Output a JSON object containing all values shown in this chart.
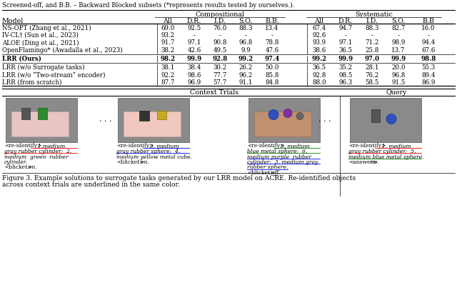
{
  "caption_top": "Screened-off, and B.B. – Backward Blocked subsets (*represents results tested by ourselves.).",
  "col_headers_2": [
    "Model",
    "All",
    "D.R.",
    "I.D.",
    "S.O.",
    "B.B.",
    "All",
    "D.R.",
    "I.D.",
    "S.O.",
    "B.B"
  ],
  "rows": [
    [
      "NS-OPT (Zhang et al., 2021)",
      "69.0",
      "92.5",
      "76.0",
      "88.3",
      "13.4",
      "67.4",
      "94.7",
      "88.3",
      "82.7",
      "16.0"
    ],
    [
      "IV-CL† (Sun et al., 2023)",
      "93.2",
      "-",
      "-",
      "-",
      "-",
      "92.6",
      "-",
      "-",
      "-",
      "-"
    ],
    [
      "ALOE (Ding et al., 2021)",
      "91.7",
      "97.1",
      "90.8",
      "96.8",
      "78.8",
      "93.9",
      "97.1",
      "71.2",
      "98.9",
      "94.4"
    ],
    [
      "OpenFlamingo* (Awadalla et al., 2023)",
      "38.2",
      "42.6",
      "49.5",
      "9.9",
      "47.6",
      "38.6",
      "36.5",
      "25.8",
      "13.7",
      "67.6"
    ]
  ],
  "lrr_row": [
    "LRR (Ours)",
    "98.2",
    "99.9",
    "92.8",
    "99.2",
    "97.4",
    "99.2",
    "99.9",
    "97.0",
    "99.9",
    "98.8"
  ],
  "ablation_rows": [
    [
      "LRR (w/o Surrogate tasks)",
      "38.1",
      "38.4",
      "30.2",
      "26.2",
      "50.0",
      "36.5",
      "35.2",
      "28.1",
      "20.0",
      "55.3"
    ],
    [
      "LRR (w/o “Two-stream” encoder)",
      "92.2",
      "98.6",
      "77.7",
      "96.2",
      "85.8",
      "92.8",
      "98.5",
      "76.2",
      "96.8",
      "89.4"
    ],
    [
      "LRR (from scratch)",
      "87.7",
      "96.9",
      "57.7",
      "91.1",
      "84.8",
      "88.0",
      "96.3",
      "58.5",
      "91.5",
      "86.9"
    ]
  ],
  "section2_title_left": "Context Trials",
  "section2_title_right": "Query",
  "caption_bottom": "Figure 3. Example solutions to surrogate tasks generated by our LRR model on ACRE. Re-identified objects\nacross context trials are underlined in the same color.",
  "bg_color": "#ffffff",
  "table_font_size": 6.2,
  "header_font_size": 6.8,
  "img1_texts": [
    "<re-identify>  1,medium",
    "gray rubber cylinder;  2,",
    "medium  green  rubber",
    "cylinder.",
    "<blicket>  on."
  ],
  "img1_underline": [
    [
      0,
      20,
      112,
      "red"
    ],
    [
      0,
      32,
      112,
      "red"
    ]
  ],
  "img2_texts": [
    "<re-identify>  3, medium",
    "gray rubber sphere;  4,",
    "medium yellow metal cube.",
    "<blicket>  on."
  ],
  "img2_underline": [
    [
      0,
      20,
      112,
      "blue"
    ],
    [
      0,
      32,
      112,
      "blue"
    ]
  ],
  "img3_texts": [
    "<re-identify>  5, medium",
    "blue metal sphere;  6,",
    "medium purple  rubber",
    "cylinder;  3, medium gray",
    "rubber sphere.",
    "<blicket>  off."
  ],
  "img3_underline": [
    [
      0,
      20,
      112,
      "green"
    ],
    [
      0,
      32,
      112,
      "blue"
    ]
  ],
  "img4_texts": [
    "<re-identify>  1, medium",
    "gray rubber cylinder;  5,",
    "medium blue metal sphere.",
    "<answer>  no."
  ],
  "img4_underline": [
    [
      0,
      20,
      112,
      "red"
    ],
    [
      0,
      32,
      112,
      "green"
    ]
  ]
}
